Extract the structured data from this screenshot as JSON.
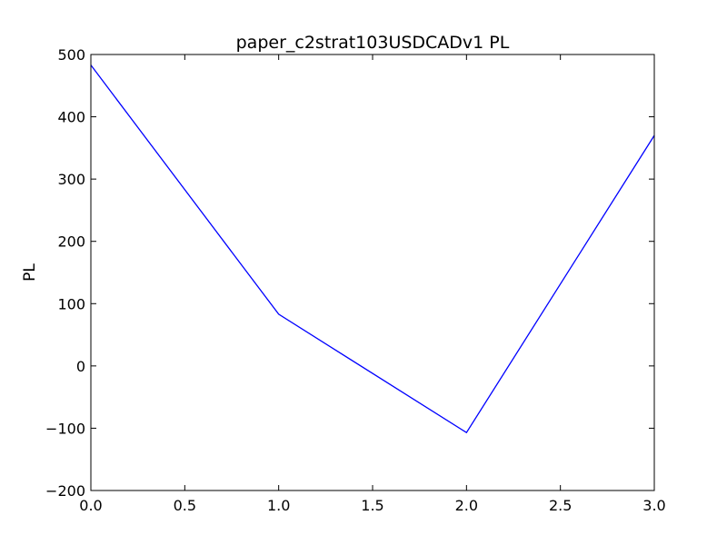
{
  "chart_data": {
    "type": "line",
    "title": "paper_c2strat103USDCADv1 PL",
    "xlabel": "",
    "ylabel": "PL",
    "xlim": [
      0,
      3
    ],
    "ylim": [
      -200,
      500
    ],
    "x_ticks": [
      "0.0",
      "0.5",
      "1.0",
      "1.5",
      "2.0",
      "2.5",
      "3.0"
    ],
    "y_ticks": [
      "−200",
      "−100",
      "0",
      "100",
      "200",
      "300",
      "400",
      "500"
    ],
    "grid": false,
    "series": [
      {
        "color": "#0000ff",
        "x": [
          0,
          1,
          2,
          3
        ],
        "values": [
          483,
          83,
          -107,
          370
        ]
      }
    ]
  }
}
